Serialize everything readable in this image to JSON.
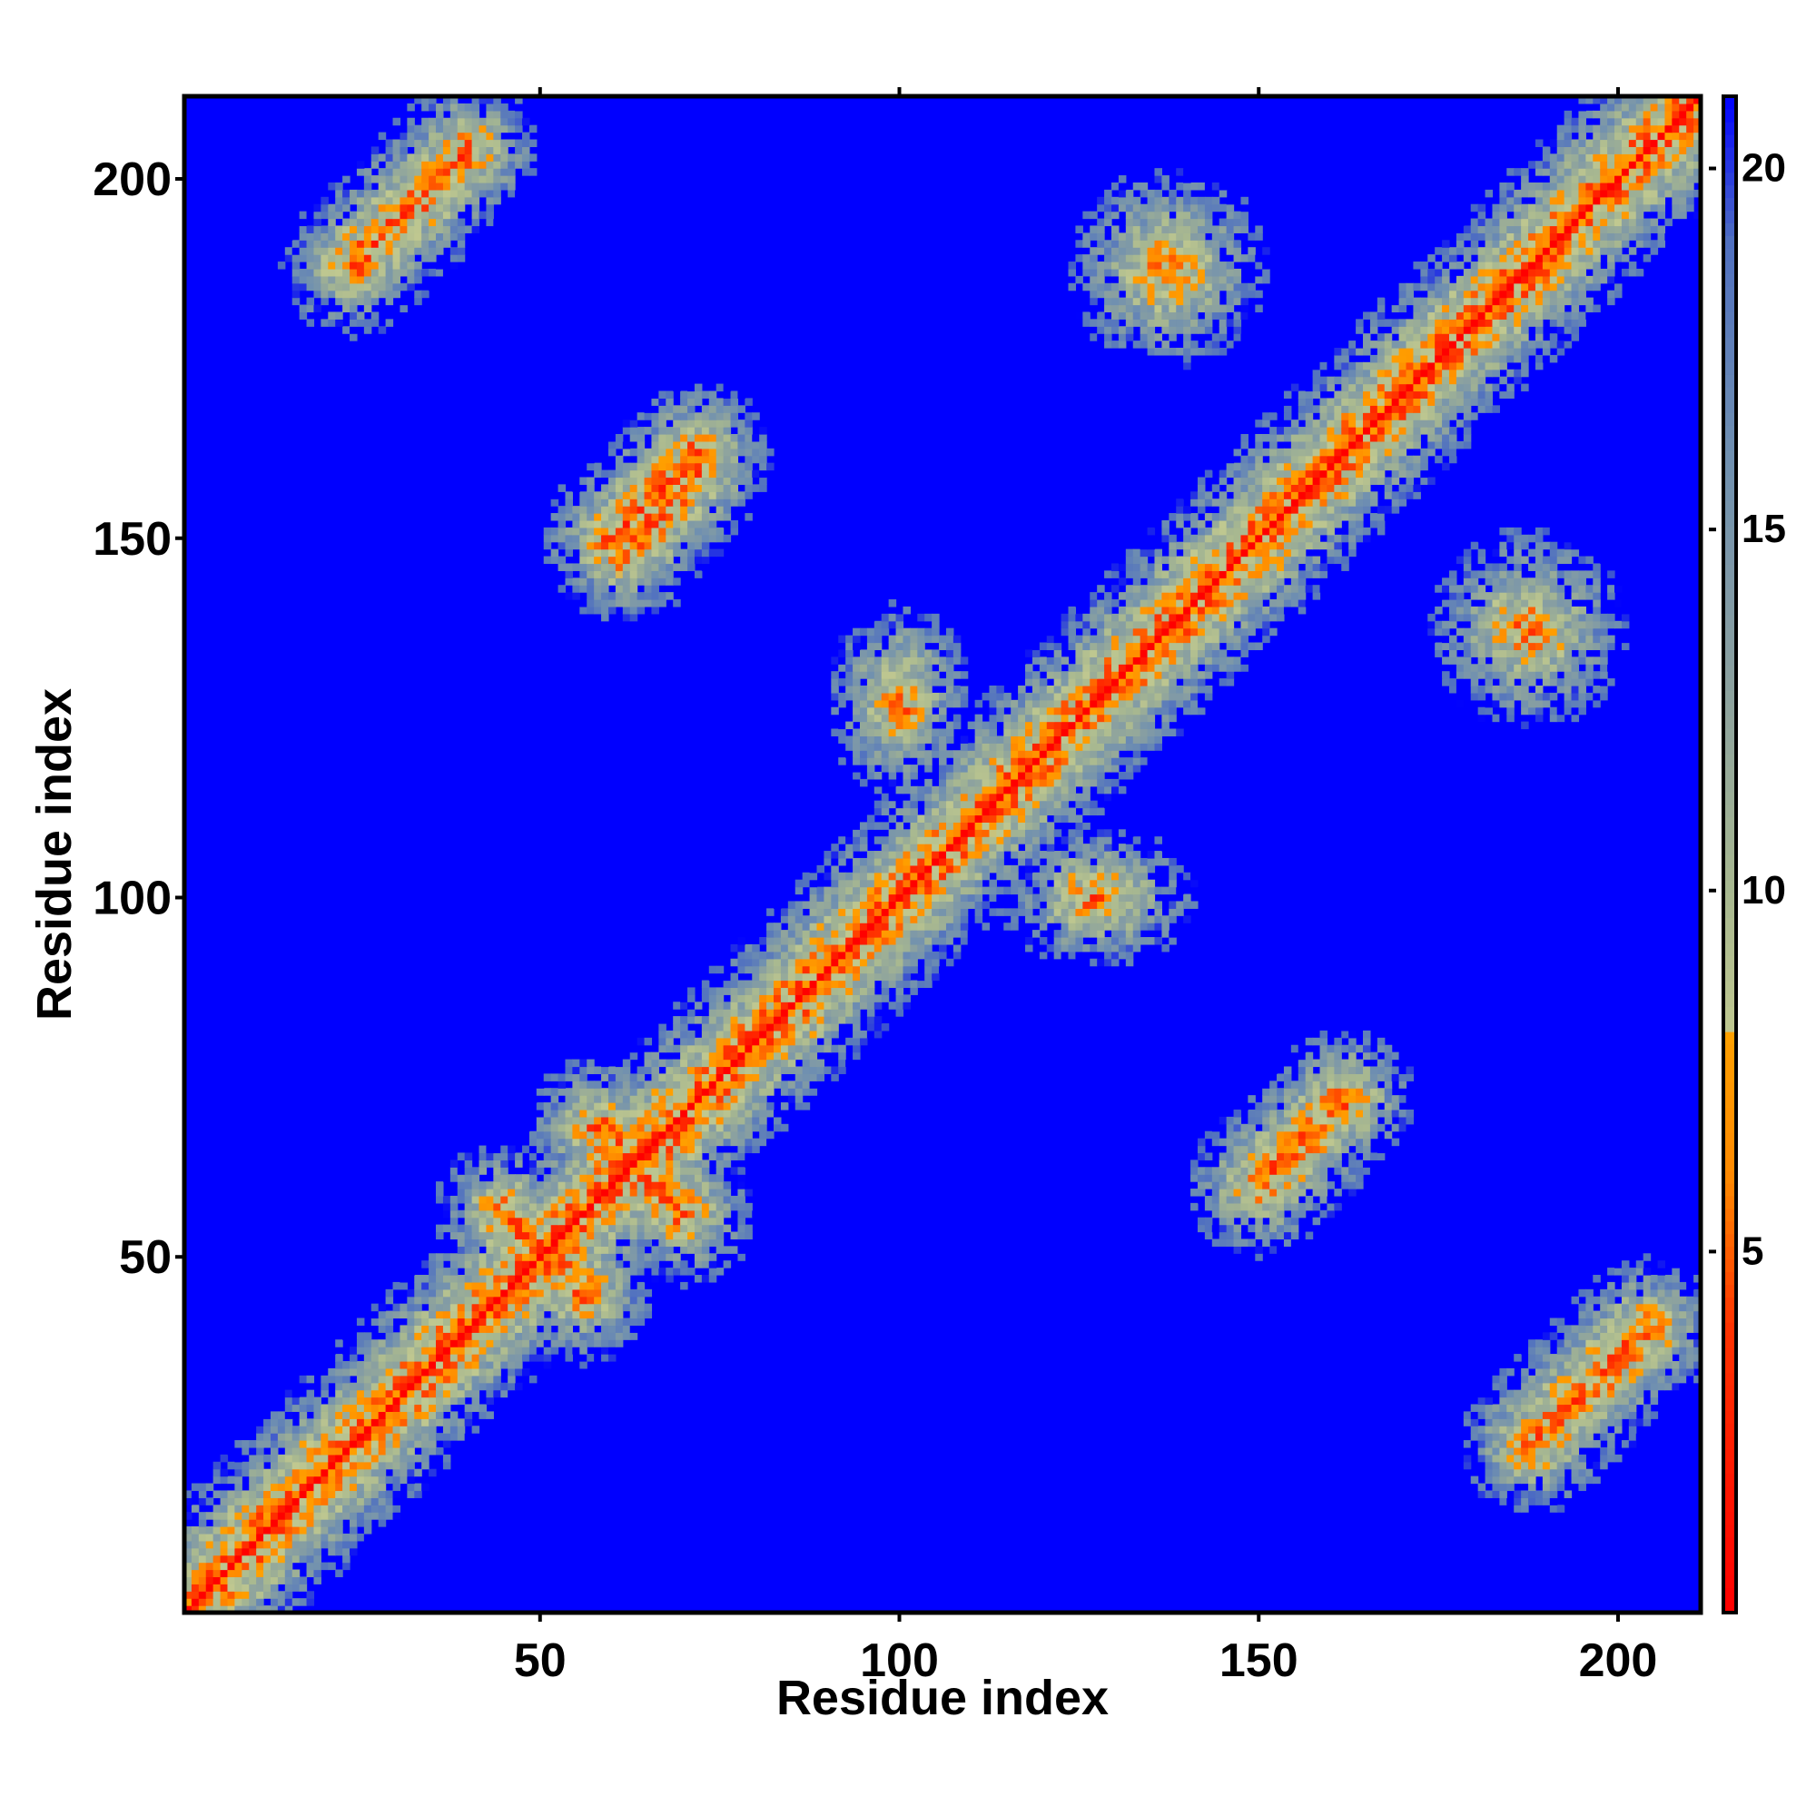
{
  "chart_data": {
    "type": "heatmap",
    "title": "",
    "xlabel": "Residue index",
    "ylabel": "Residue index",
    "n_residues": 211,
    "xlim": [
      1,
      211
    ],
    "ylim": [
      1,
      211
    ],
    "x_ticks": [
      50,
      100,
      150,
      200
    ],
    "y_ticks": [
      50,
      100,
      150,
      200
    ],
    "colorbar": {
      "ticks": [
        5,
        10,
        15,
        20
      ],
      "range": [
        0,
        21
      ],
      "colors": [
        {
          "value": 0,
          "color": "#ff0000"
        },
        {
          "value": 4,
          "color": "#ff3300"
        },
        {
          "value": 6,
          "color": "#ff8800"
        },
        {
          "value": 8,
          "color": "#ffa000"
        },
        {
          "value": 8.01,
          "color": "#c0c890"
        },
        {
          "value": 10,
          "color": "#a8b890"
        },
        {
          "value": 13,
          "color": "#8aa0a0"
        },
        {
          "value": 16,
          "color": "#7090b0"
        },
        {
          "value": 19,
          "color": "#5070c0"
        },
        {
          "value": 21,
          "color": "#0000ff"
        }
      ]
    },
    "background_color": "#0000ff",
    "description_of_values": "Pairwise residue distance matrix; main diagonal near 0 (red), contact regions orange/yellow-green, distant pairs saturated blue",
    "features": [
      {
        "kind": "diagonal",
        "from": 1,
        "to": 211
      },
      {
        "kind": "antiparallel",
        "i": [
          45,
          56
        ],
        "j": [
          56,
          45
        ]
      },
      {
        "kind": "antiparallel",
        "i": [
          58,
          70
        ],
        "j": [
          68,
          56
        ]
      },
      {
        "kind": "parallel",
        "i": [
          60,
          72
        ],
        "j": [
          150,
          162
        ]
      },
      {
        "kind": "parallel",
        "i": [
          150,
          162
        ],
        "j": [
          60,
          72
        ]
      },
      {
        "kind": "parallel",
        "i": [
          24,
          40
        ],
        "j": [
          188,
          204
        ]
      },
      {
        "kind": "parallel",
        "i": [
          188,
          204
        ],
        "j": [
          24,
          40
        ]
      },
      {
        "kind": "parallel",
        "i": [
          62,
          72
        ],
        "j": [
          148,
          160
        ]
      },
      {
        "kind": "blob",
        "i": [
          95,
          105
        ],
        "j": [
          120,
          135
        ]
      },
      {
        "kind": "blob",
        "i": [
          120,
          135
        ],
        "j": [
          95,
          105
        ]
      },
      {
        "kind": "blob",
        "i": [
          130,
          145
        ],
        "j": [
          180,
          195
        ]
      },
      {
        "kind": "blob",
        "i": [
          180,
          195
        ],
        "j": [
          130,
          145
        ]
      }
    ]
  }
}
